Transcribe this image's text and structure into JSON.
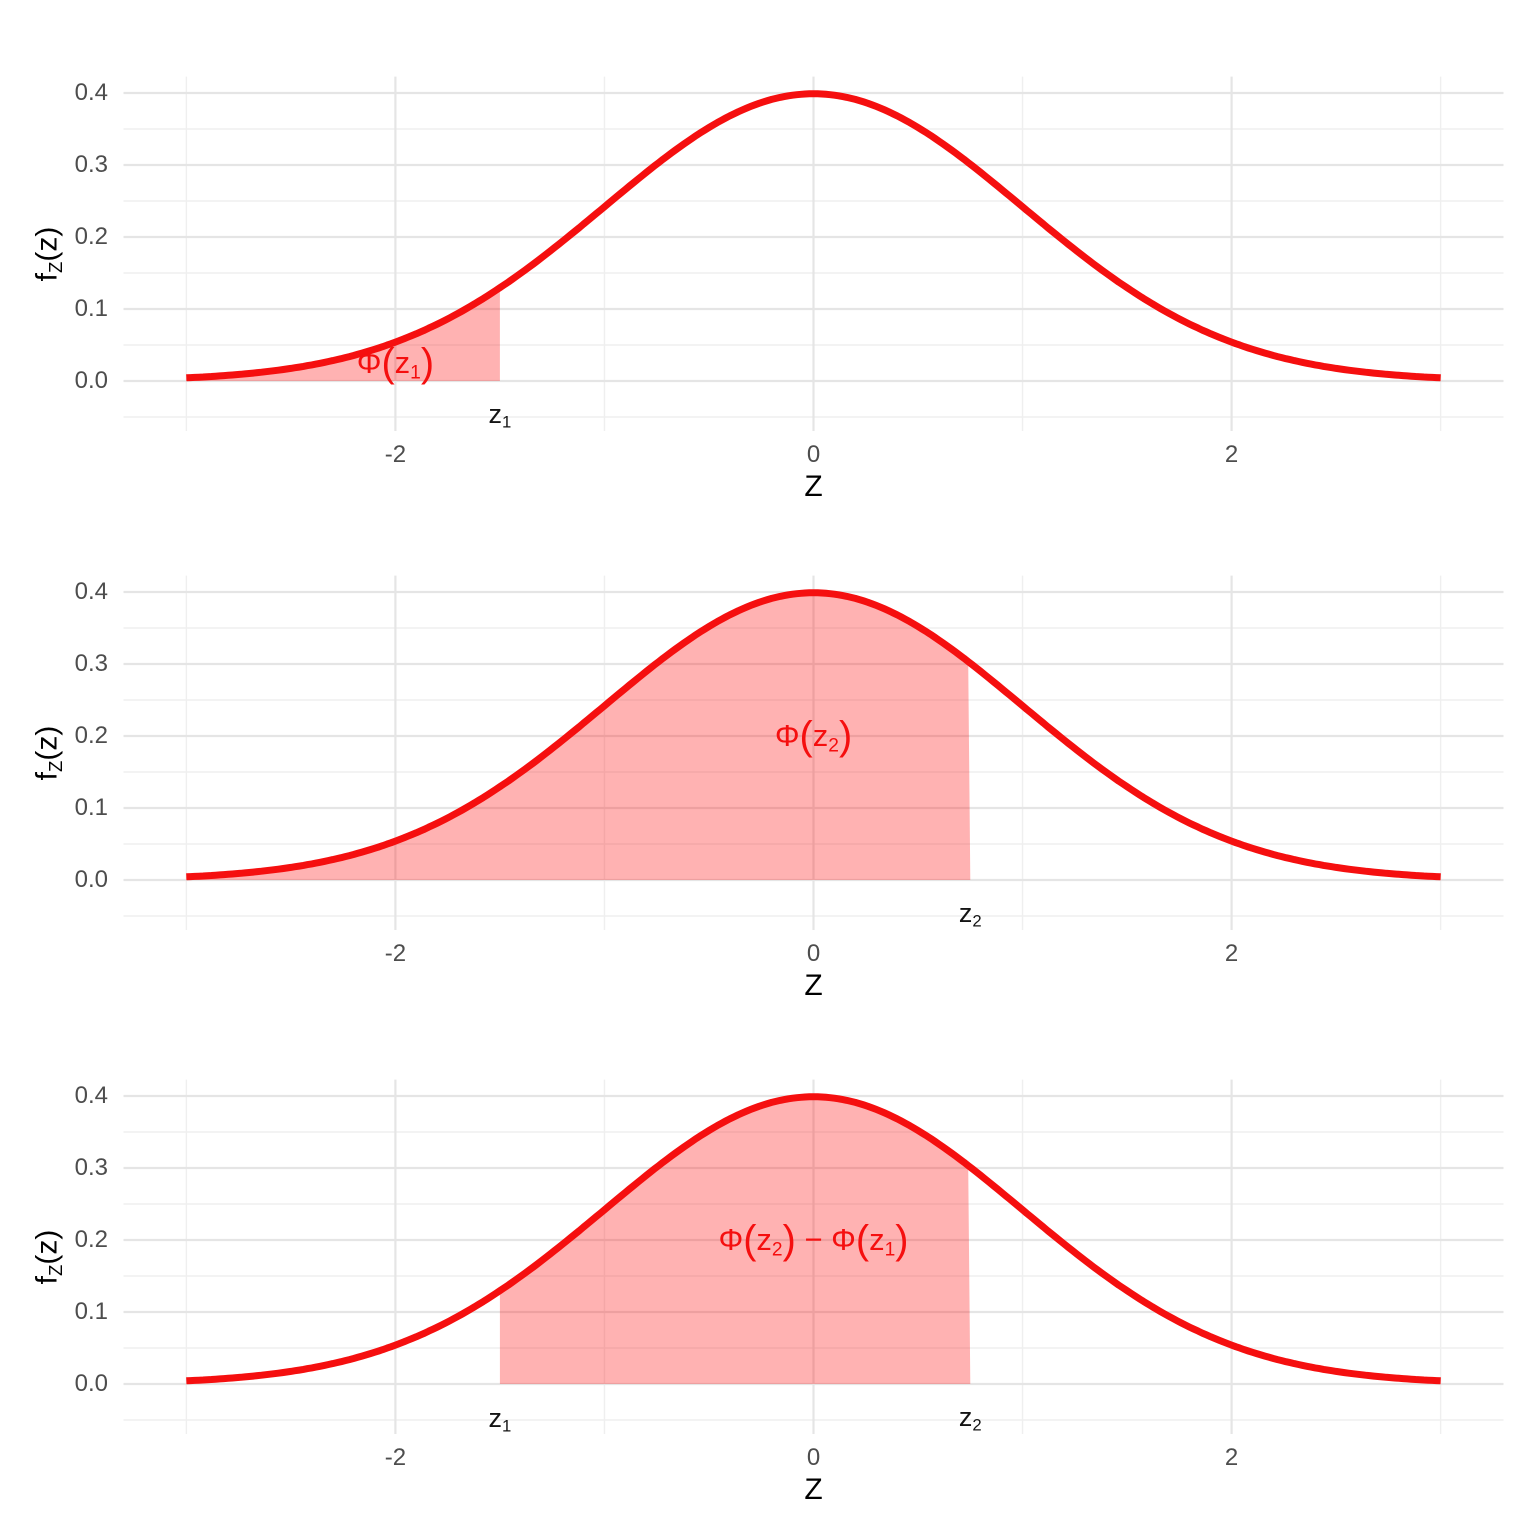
{
  "style": {
    "curve_color": "#f50f0f",
    "fill_color": "rgba(255,0,0,0.30)",
    "grid_major_color": "#e5e5e5",
    "grid_minor_color": "#efefef",
    "tick_label_color": "#4d4d4d",
    "axis_title_color": "#000000",
    "annotation_color": "#141414",
    "background": "#ffffff"
  },
  "chart_data": {
    "type": "area",
    "curve": "standard normal pdf f_Z(z) = exp(-z^2/2)/sqrt(2*pi)",
    "x_range_drawn": [
      -3,
      3
    ],
    "z1": -1.5,
    "z2": 0.75,
    "pdf_at_z1": 0.1295,
    "pdf_at_z2": 0.3011,
    "peak_density": 0.3989,
    "grid": "major and minor, light gray, no tick marks",
    "x_axis": {
      "title_segments": [
        {
          "t": "Z"
        }
      ],
      "major_ticks": [
        -2,
        0,
        2
      ],
      "tick_labels": [
        "-2",
        "0",
        "2"
      ],
      "minor_gridlines": [
        -3,
        -1,
        1,
        3
      ]
    },
    "y_axis": {
      "title_segments": [
        {
          "t": "f"
        },
        {
          "sub": "Z"
        },
        {
          "t": "(z)"
        }
      ],
      "major_ticks": [
        0,
        0.1,
        0.2,
        0.3,
        0.4
      ],
      "tick_labels": [
        "0.0",
        "0.1",
        "0.2",
        "0.3",
        "0.4"
      ],
      "minor_gridlines": [
        -0.05,
        0.05,
        0.15,
        0.25,
        0.35
      ]
    },
    "panels": [
      {
        "name": "phi-z1",
        "shade": {
          "from": -3,
          "to": -1.5
        },
        "area_label": {
          "text": "Φ(z₁)",
          "segments": [
            {
              "t": "Φ"
            },
            {
              "p": "("
            },
            {
              "t": "z"
            },
            {
              "sub": "1"
            },
            {
              "p": ")"
            }
          ],
          "x": -2.0,
          "y": 0.023
        },
        "boundary_labels": [
          {
            "text": "z₁",
            "main": "z",
            "sub": "1",
            "x": -1.5,
            "y": -0.048
          }
        ]
      },
      {
        "name": "phi-z2",
        "shade": {
          "from": -3,
          "to": 0.75
        },
        "area_label": {
          "text": "Φ(z₂)",
          "segments": [
            {
              "t": "Φ"
            },
            {
              "p": "("
            },
            {
              "t": "z"
            },
            {
              "sub": "2"
            },
            {
              "p": ")"
            }
          ],
          "x": 0,
          "y": 0.198
        },
        "boundary_labels": [
          {
            "text": "z₂",
            "main": "z",
            "sub": "2",
            "x": 0.75,
            "y": -0.048
          }
        ]
      },
      {
        "name": "phi-z2-minus-phi-z1",
        "shade": {
          "from": -1.5,
          "to": 0.75
        },
        "area_label": {
          "text": "Φ(z₂) − Φ(z₁)",
          "segments": [
            {
              "t": "Φ"
            },
            {
              "p": "("
            },
            {
              "t": "z"
            },
            {
              "sub": "2"
            },
            {
              "p": ")"
            },
            {
              "t": " − Φ"
            },
            {
              "p": "("
            },
            {
              "t": "z"
            },
            {
              "sub": "1"
            },
            {
              "p": ")"
            }
          ],
          "x": 0,
          "y": 0.199
        },
        "boundary_labels": [
          {
            "text": "z₁",
            "main": "z",
            "sub": "1",
            "x": -1.5,
            "y": -0.05
          },
          {
            "text": "z₂",
            "main": "z",
            "sub": "2",
            "x": 0.75,
            "y": -0.048
          }
        ]
      }
    ]
  }
}
